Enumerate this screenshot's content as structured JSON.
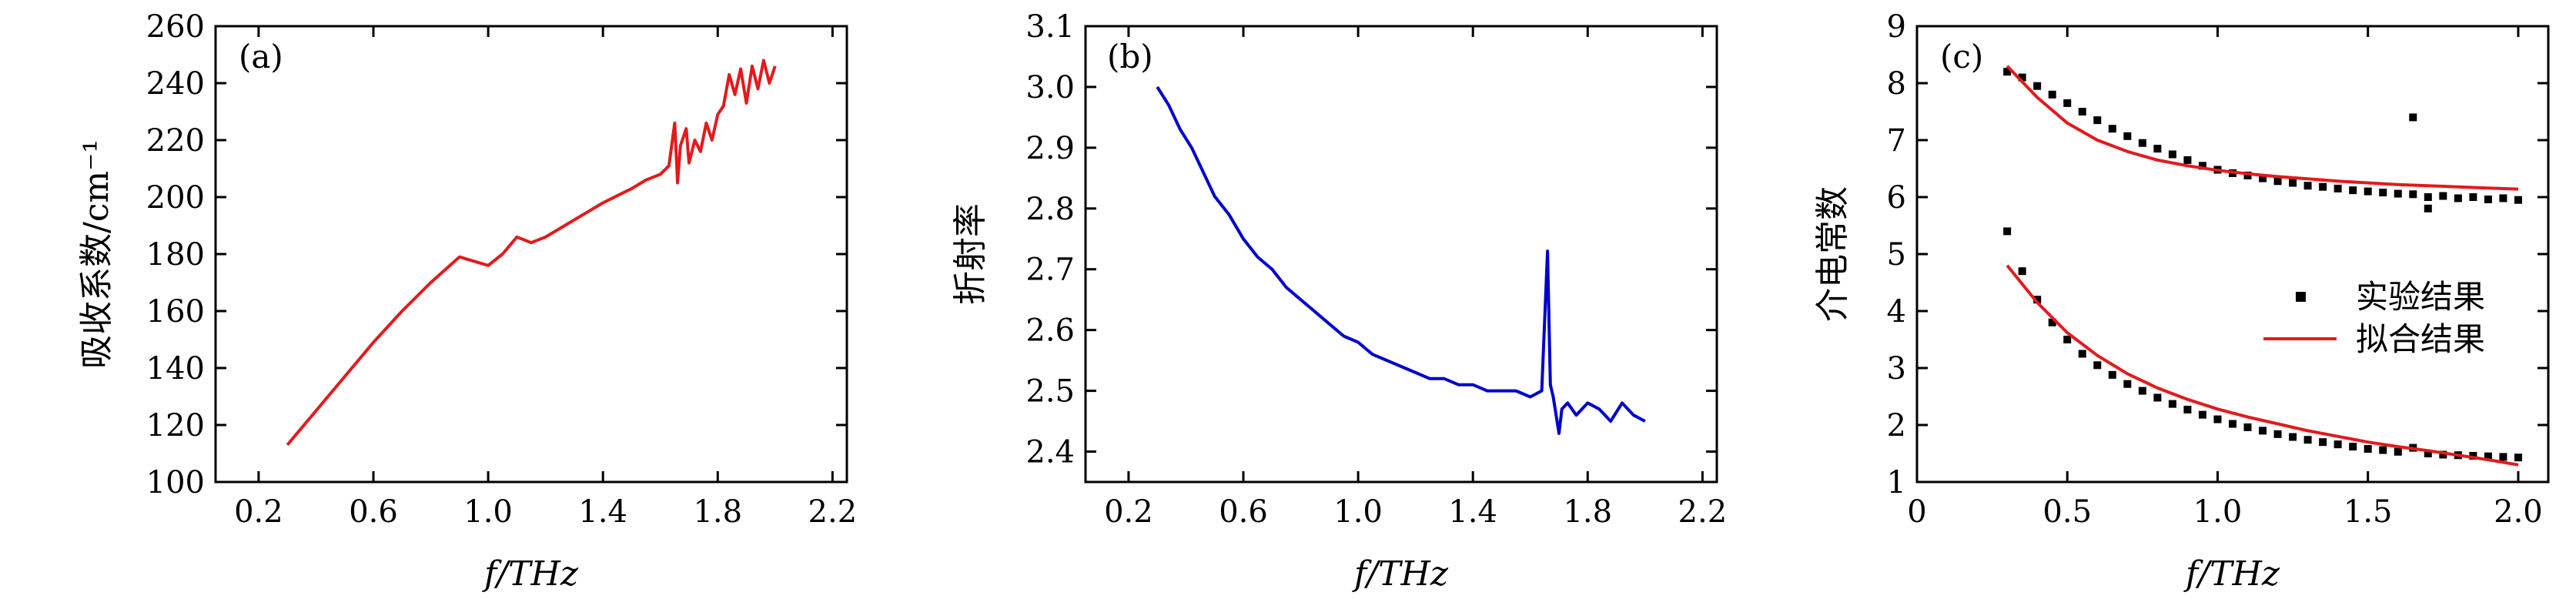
{
  "chart_data": [
    {
      "type": "line",
      "panel_label": "(a)",
      "xlabel": "f/THz",
      "ylabel": "吸收系数/cm⁻¹",
      "xlim": [
        0.05,
        2.25
      ],
      "ylim": [
        100,
        260
      ],
      "xticks": [
        "0.2",
        "0.6",
        "1.0",
        "1.4",
        "1.8",
        "2.2"
      ],
      "yticks": [
        "100",
        "120",
        "140",
        "160",
        "180",
        "200",
        "220",
        "240",
        "260"
      ],
      "series": [
        {
          "color": "#e31a1c",
          "x": [
            0.3,
            0.4,
            0.5,
            0.6,
            0.7,
            0.8,
            0.9,
            1.0,
            1.05,
            1.1,
            1.15,
            1.2,
            1.3,
            1.4,
            1.5,
            1.55,
            1.6,
            1.63,
            1.65,
            1.66,
            1.67,
            1.69,
            1.7,
            1.72,
            1.74,
            1.76,
            1.78,
            1.8,
            1.82,
            1.84,
            1.86,
            1.88,
            1.9,
            1.92,
            1.94,
            1.96,
            1.98,
            2.0
          ],
          "y": [
            113,
            125,
            137,
            149,
            160,
            170,
            179,
            176,
            180,
            186,
            184,
            186,
            192,
            198,
            203,
            206,
            208,
            211,
            226,
            205,
            218,
            224,
            212,
            220,
            216,
            226,
            220,
            229,
            232,
            243,
            236,
            245,
            233,
            246,
            238,
            248,
            240,
            246
          ]
        }
      ]
    },
    {
      "type": "line",
      "panel_label": "(b)",
      "xlabel": "f/THz",
      "ylabel": "折射率",
      "xlim": [
        0.05,
        2.25
      ],
      "ylim": [
        2.35,
        3.1
      ],
      "xticks": [
        "0.2",
        "0.6",
        "1.0",
        "1.4",
        "1.8",
        "2.2"
      ],
      "yticks": [
        "2.4",
        "2.5",
        "2.6",
        "2.7",
        "2.8",
        "2.9",
        "3.0",
        "3.1"
      ],
      "series": [
        {
          "color": "#0000cc",
          "x": [
            0.3,
            0.34,
            0.38,
            0.42,
            0.46,
            0.5,
            0.55,
            0.6,
            0.65,
            0.7,
            0.75,
            0.8,
            0.85,
            0.9,
            0.95,
            1.0,
            1.05,
            1.1,
            1.15,
            1.2,
            1.25,
            1.3,
            1.35,
            1.4,
            1.45,
            1.5,
            1.55,
            1.6,
            1.64,
            1.66,
            1.67,
            1.68,
            1.7,
            1.71,
            1.73,
            1.76,
            1.8,
            1.84,
            1.88,
            1.92,
            1.96,
            2.0
          ],
          "y": [
            3.0,
            2.97,
            2.93,
            2.9,
            2.86,
            2.82,
            2.79,
            2.75,
            2.72,
            2.7,
            2.67,
            2.65,
            2.63,
            2.61,
            2.59,
            2.58,
            2.56,
            2.55,
            2.54,
            2.53,
            2.52,
            2.52,
            2.51,
            2.51,
            2.5,
            2.5,
            2.5,
            2.49,
            2.5,
            2.73,
            2.51,
            2.49,
            2.43,
            2.47,
            2.48,
            2.46,
            2.48,
            2.47,
            2.45,
            2.48,
            2.46,
            2.45
          ]
        }
      ]
    },
    {
      "type": "scatter",
      "panel_label": "(c)",
      "xlabel": "f/THz",
      "ylabel": "介电常数",
      "xlim": [
        0.0,
        2.1
      ],
      "ylim": [
        1,
        9
      ],
      "xticks": [
        "0",
        "0.5",
        "1.0",
        "1.5",
        "2.0"
      ],
      "yticks": [
        "1",
        "2",
        "3",
        "4",
        "5",
        "6",
        "7",
        "8",
        "9"
      ],
      "legend": {
        "position": "right",
        "entries": [
          {
            "label": "实验结果",
            "marker": "square",
            "color": "#000000"
          },
          {
            "label": "拟合结果",
            "marker": "line",
            "color": "#e31a1c"
          }
        ]
      },
      "series": [
        {
          "name": "实验结果",
          "kind": "points",
          "color": "#000000",
          "x": [
            0.3,
            0.35,
            0.4,
            0.45,
            0.5,
            0.55,
            0.6,
            0.65,
            0.7,
            0.75,
            0.8,
            0.85,
            0.9,
            0.95,
            1.0,
            1.05,
            1.1,
            1.15,
            1.2,
            1.25,
            1.3,
            1.35,
            1.4,
            1.45,
            1.5,
            1.55,
            1.6,
            1.65,
            1.7,
            1.75,
            1.8,
            1.85,
            1.9,
            1.95,
            2.0,
            1.65,
            1.7
          ],
          "y": [
            8.2,
            8.1,
            7.95,
            7.8,
            7.65,
            7.5,
            7.35,
            7.2,
            7.07,
            6.95,
            6.85,
            6.75,
            6.65,
            6.55,
            6.48,
            6.42,
            6.38,
            6.33,
            6.28,
            6.25,
            6.2,
            6.18,
            6.15,
            6.12,
            6.1,
            6.08,
            6.06,
            6.05,
            6.0,
            6.02,
            5.98,
            6.0,
            5.96,
            5.98,
            5.95,
            7.4,
            5.8
          ]
        },
        {
          "name": "实验结果",
          "kind": "points",
          "color": "#000000",
          "x": [
            0.3,
            0.35,
            0.4,
            0.45,
            0.5,
            0.55,
            0.6,
            0.65,
            0.7,
            0.75,
            0.8,
            0.85,
            0.9,
            0.95,
            1.0,
            1.05,
            1.1,
            1.15,
            1.2,
            1.25,
            1.3,
            1.35,
            1.4,
            1.45,
            1.5,
            1.55,
            1.6,
            1.65,
            1.7,
            1.75,
            1.8,
            1.85,
            1.9,
            1.95,
            2.0
          ],
          "y": [
            5.4,
            4.7,
            4.2,
            3.8,
            3.5,
            3.25,
            3.05,
            2.88,
            2.72,
            2.6,
            2.48,
            2.37,
            2.27,
            2.18,
            2.1,
            2.02,
            1.96,
            1.9,
            1.84,
            1.79,
            1.74,
            1.7,
            1.66,
            1.62,
            1.58,
            1.56,
            1.53,
            1.6,
            1.5,
            1.48,
            1.47,
            1.46,
            1.45,
            1.44,
            1.43
          ]
        },
        {
          "name": "拟合结果",
          "kind": "line",
          "color": "#e31a1c",
          "x": [
            0.3,
            0.4,
            0.5,
            0.6,
            0.7,
            0.8,
            0.9,
            1.0,
            1.1,
            1.2,
            1.3,
            1.4,
            1.5,
            1.6,
            1.7,
            1.8,
            1.9,
            2.0
          ],
          "y": [
            8.3,
            7.75,
            7.3,
            7.0,
            6.8,
            6.65,
            6.55,
            6.47,
            6.41,
            6.36,
            6.32,
            6.28,
            6.25,
            6.22,
            6.2,
            6.18,
            6.16,
            6.14
          ]
        },
        {
          "name": "拟合结果",
          "kind": "line",
          "color": "#e31a1c",
          "x": [
            0.3,
            0.4,
            0.5,
            0.6,
            0.7,
            0.8,
            0.9,
            1.0,
            1.1,
            1.2,
            1.3,
            1.4,
            1.5,
            1.6,
            1.7,
            1.8,
            1.9,
            2.0
          ],
          "y": [
            4.8,
            4.15,
            3.62,
            3.22,
            2.9,
            2.65,
            2.45,
            2.28,
            2.14,
            2.02,
            1.9,
            1.8,
            1.7,
            1.62,
            1.55,
            1.47,
            1.39,
            1.3
          ]
        }
      ]
    }
  ]
}
